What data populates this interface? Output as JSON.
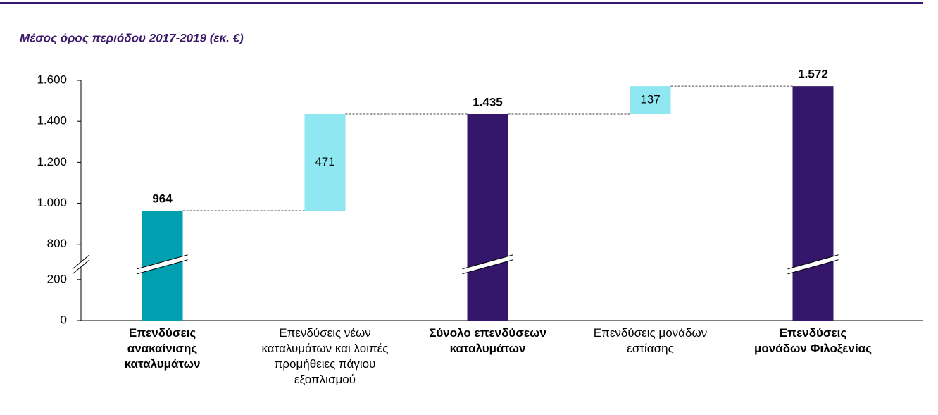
{
  "chart_data": {
    "type": "waterfall",
    "title": "Μέσος όρος περιόδου 2017-2019 (εκ. €)",
    "categories": [
      "Επενδύσεις ανακαίνισης καταλυμάτων",
      "Επενδύσεις νέων καταλυμάτων και λοιπές προμήθειες πάγιου εξοπλισμού",
      "Σύνολο επενδύσεων καταλυμάτων",
      "Επενδύσεις μονάδων εστίασης",
      "Επενδύσεις μονάδων Φιλοξενίας"
    ],
    "values": [
      964,
      471,
      1435,
      137,
      1572
    ],
    "value_labels": [
      "964",
      "471",
      "1.435",
      "137",
      "1.572"
    ],
    "measure": [
      "absolute",
      "relative",
      "total",
      "relative",
      "total"
    ],
    "colors": [
      "#00a0b0",
      "#8fe7f2",
      "#34166a",
      "#8fe7f2",
      "#34166a"
    ],
    "ylim": [
      0,
      1600
    ],
    "yticks": [
      0,
      200,
      800,
      {
        "value": 1000,
        "label": "1.000"
      },
      {
        "value": 1200,
        "label": "1.200"
      },
      {
        "value": 1400,
        "label": "1.400"
      },
      {
        "value": 1600,
        "label": "1.600"
      }
    ],
    "broken_axis": true
  }
}
